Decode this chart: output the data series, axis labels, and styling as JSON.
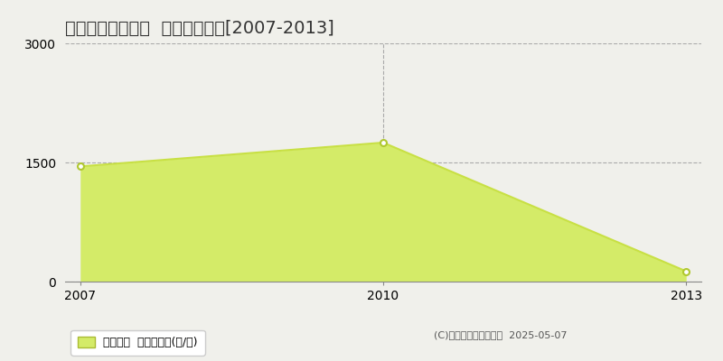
{
  "title": "利根郡昭和村生越  林地価格推移[2007-2013]",
  "years": [
    2007,
    2010,
    2013
  ],
  "values": [
    1450,
    1750,
    130
  ],
  "xlim": [
    2007,
    2013
  ],
  "ylim": [
    0,
    3000
  ],
  "yticks": [
    0,
    1500,
    3000
  ],
  "xticks": [
    2007,
    2010,
    2013
  ],
  "line_color": "#c8e044",
  "fill_color": "#d4eb68",
  "fill_alpha": 1.0,
  "marker_color": "#ffffff",
  "marker_edge_color": "#b0c830",
  "grid_color": "#aaaaaa",
  "bg_color": "#f0f0eb",
  "legend_label": "林地価格  平均坪単価(円/坪)",
  "copyright_text": "(C)土地価格ドットコム  2025-05-07",
  "title_fontsize": 14,
  "axis_fontsize": 10,
  "legend_fontsize": 9,
  "copyright_fontsize": 8
}
